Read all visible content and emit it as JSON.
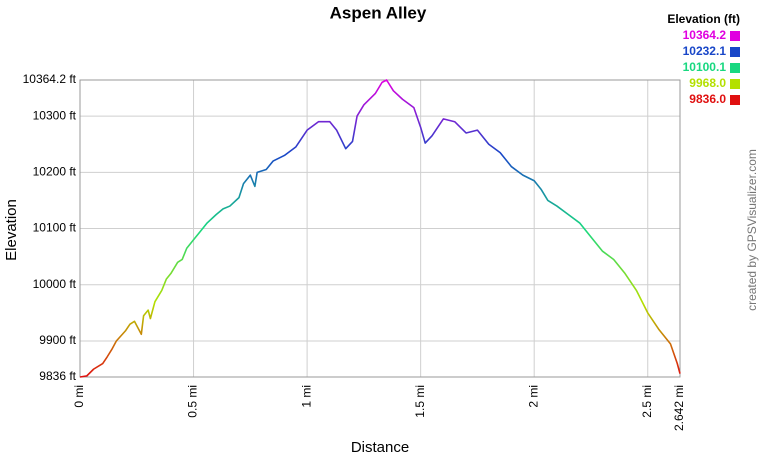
{
  "chart_data": {
    "type": "line",
    "title": "Aspen Alley",
    "x_label": "Distance",
    "y_label": "Elevation",
    "credit": "created by GPSVisualizer.com",
    "legend_title": "Elevation (ft)",
    "legend": [
      {
        "value": 10364.2,
        "label": "10364.2",
        "color": "#e000e0"
      },
      {
        "value": 10232.1,
        "label": "10232.1",
        "color": "#1846c8"
      },
      {
        "value": 10100.1,
        "label": "10100.1",
        "color": "#18d880"
      },
      {
        "value": 9968.0,
        "label": "9968.0",
        "color": "#b4e000"
      },
      {
        "value": 9836.0,
        "label": "9836.0",
        "color": "#e01010"
      }
    ],
    "grid": true,
    "xlim": [
      0,
      2.642
    ],
    "ylim": [
      9836,
      10364.2
    ],
    "xticks": [
      {
        "value": 0,
        "label": "0 mi"
      },
      {
        "value": 0.5,
        "label": "0.5 mi"
      },
      {
        "value": 1,
        "label": "1 mi"
      },
      {
        "value": 1.5,
        "label": "1.5 mi"
      },
      {
        "value": 2,
        "label": "2 mi"
      },
      {
        "value": 2.5,
        "label": "2.5 mi"
      },
      {
        "value": 2.642,
        "label": "2.642 mi"
      }
    ],
    "yticks": [
      {
        "value": 9836,
        "label": "9836 ft"
      },
      {
        "value": 9900,
        "label": "9900 ft"
      },
      {
        "value": 10000,
        "label": "10000 ft"
      },
      {
        "value": 10100,
        "label": "10100 ft"
      },
      {
        "value": 10200,
        "label": "10200 ft"
      },
      {
        "value": 10300,
        "label": "10300 ft"
      },
      {
        "value": 10364.2,
        "label": "10364.2 ft"
      }
    ],
    "series": [
      {
        "x": [
          0,
          0.03,
          0.06,
          0.1,
          0.12,
          0.14,
          0.16,
          0.2,
          0.22,
          0.24,
          0.27,
          0.28,
          0.3,
          0.31,
          0.33,
          0.36,
          0.38,
          0.4,
          0.43,
          0.45,
          0.47,
          0.5,
          0.53,
          0.56,
          0.6,
          0.63,
          0.66,
          0.7,
          0.72,
          0.75,
          0.77,
          0.78,
          0.82,
          0.85,
          0.9,
          0.95,
          1.0,
          1.05,
          1.1,
          1.13,
          1.17,
          1.2,
          1.22,
          1.25,
          1.3,
          1.33,
          1.35,
          1.38,
          1.42,
          1.47,
          1.5,
          1.52,
          1.55,
          1.6,
          1.65,
          1.7,
          1.75,
          1.8,
          1.85,
          1.9,
          1.95,
          2.0,
          2.03,
          2.06,
          2.1,
          2.15,
          2.2,
          2.25,
          2.3,
          2.35,
          2.4,
          2.45,
          2.5,
          2.55,
          2.6,
          2.63,
          2.642
        ],
        "values": [
          9836,
          9838,
          9850,
          9860,
          9872,
          9885,
          9900,
          9918,
          9930,
          9935,
          9912,
          9945,
          9955,
          9940,
          9970,
          9990,
          10010,
          10020,
          10040,
          10045,
          10065,
          10080,
          10095,
          10110,
          10125,
          10135,
          10140,
          10155,
          10180,
          10195,
          10175,
          10200,
          10205,
          10220,
          10230,
          10245,
          10275,
          10290,
          10290,
          10275,
          10242,
          10255,
          10300,
          10320,
          10340,
          10360,
          10364.2,
          10345,
          10330,
          10315,
          10280,
          10252,
          10265,
          10295,
          10290,
          10270,
          10275,
          10250,
          10235,
          10210,
          10195,
          10185,
          10170,
          10150,
          10140,
          10125,
          10110,
          10085,
          10060,
          10045,
          10020,
          9990,
          9950,
          9920,
          9895,
          9860,
          9842
        ]
      }
    ]
  }
}
